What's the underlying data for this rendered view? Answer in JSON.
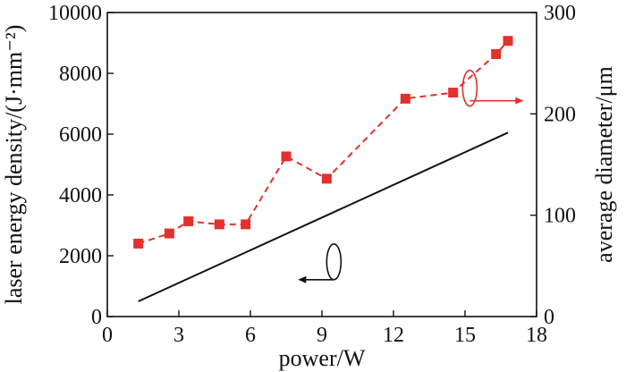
{
  "chart_data": {
    "type": "line",
    "x": {
      "label": "power/W",
      "lim": [
        0,
        18
      ],
      "ticks": [
        0,
        3,
        6,
        9,
        12,
        15,
        18
      ],
      "tick_labels": [
        "0",
        "3",
        "6",
        "9",
        "12",
        "15",
        "18"
      ]
    },
    "y_left": {
      "label": "laser energy density/(J·mm⁻²)",
      "lim": [
        0,
        10000
      ],
      "ticks": [
        0,
        2000,
        4000,
        6000,
        8000,
        10000
      ],
      "tick_labels": [
        "0",
        "2000",
        "4000",
        "6000",
        "8000",
        "10000"
      ]
    },
    "y_right": {
      "label": "average diameter/μm",
      "lim": [
        0,
        300
      ],
      "ticks": [
        0,
        100,
        200,
        300
      ],
      "tick_labels": [
        "0",
        "100",
        "200",
        "300"
      ]
    },
    "series": [
      {
        "name": "laser energy density",
        "axis": "left",
        "color": "#111111",
        "style": "solid",
        "marker": "none",
        "points": [
          [
            1.3,
            500
          ],
          [
            16.8,
            6050
          ]
        ]
      },
      {
        "name": "average diameter",
        "axis": "right",
        "color": "#e3312d",
        "style": "dashed",
        "marker": "square",
        "points": [
          [
            1.3,
            72
          ],
          [
            2.6,
            82
          ],
          [
            3.4,
            94
          ],
          [
            4.7,
            91
          ],
          [
            5.8,
            91
          ],
          [
            7.5,
            158
          ],
          [
            9.2,
            136
          ],
          [
            12.5,
            215
          ],
          [
            14.5,
            221
          ],
          [
            16.3,
            259
          ],
          [
            16.8,
            272
          ]
        ]
      }
    ],
    "annotations": [
      {
        "kind": "ellipse-arrow",
        "target": "left",
        "direction": "left",
        "color": "#111111"
      },
      {
        "kind": "ellipse-arrow",
        "target": "right",
        "direction": "right",
        "color": "#e3312d"
      }
    ]
  }
}
